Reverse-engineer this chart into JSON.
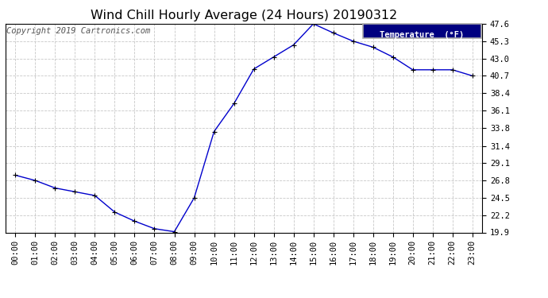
{
  "title": "Wind Chill Hourly Average (24 Hours) 20190312",
  "copyright": "Copyright 2019 Cartronics.com",
  "legend_label": "Temperature  (°F)",
  "hours": [
    "00:00",
    "01:00",
    "02:00",
    "03:00",
    "04:00",
    "05:00",
    "06:00",
    "07:00",
    "08:00",
    "09:00",
    "10:00",
    "11:00",
    "12:00",
    "13:00",
    "14:00",
    "15:00",
    "16:00",
    "17:00",
    "18:00",
    "19:00",
    "20:00",
    "21:00",
    "22:00",
    "23:00"
  ],
  "values": [
    27.5,
    26.8,
    25.8,
    25.3,
    24.8,
    22.6,
    21.4,
    20.4,
    20.0,
    24.5,
    33.3,
    37.0,
    41.6,
    43.2,
    44.8,
    47.6,
    46.4,
    45.3,
    44.5,
    43.2,
    41.5,
    41.5,
    41.5,
    40.7
  ],
  "ylim": [
    19.9,
    47.6
  ],
  "yticks": [
    19.9,
    22.2,
    24.5,
    26.8,
    29.1,
    31.4,
    33.8,
    36.1,
    38.4,
    40.7,
    43.0,
    45.3,
    47.6
  ],
  "line_color": "#0000cc",
  "marker_color": "#000000",
  "bg_color": "#ffffff",
  "grid_color": "#c8c8c8",
  "title_color": "#000000",
  "legend_bg": "#000080",
  "legend_text_color": "#ffffff",
  "title_fontsize": 11.5,
  "tick_fontsize": 7.5,
  "copyright_fontsize": 7.5
}
